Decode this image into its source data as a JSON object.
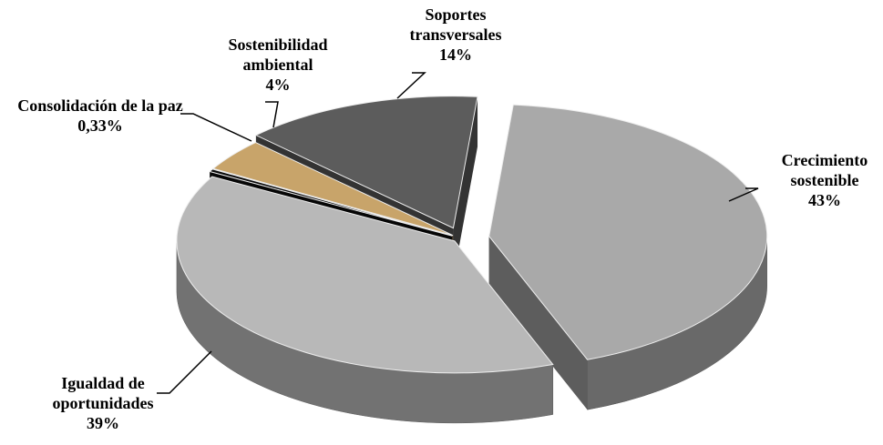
{
  "chart_data": {
    "type": "pie",
    "style": "3d-exploded",
    "categories": [
      "Crecimiento sostenible",
      "Igualdad de oportunidades",
      "Consolidación de la paz",
      "Sostenibilidad ambiental",
      "Soportes transversales"
    ],
    "values": [
      43,
      39,
      0.33,
      4,
      14
    ],
    "value_labels": [
      "43%",
      "39%",
      "0,33%",
      "4%",
      "14%"
    ],
    "colors": [
      "#a9a9a9",
      "#b8b8b8",
      "#0a0a0a",
      "#c8a46a",
      "#5c5c5c"
    ]
  }
}
